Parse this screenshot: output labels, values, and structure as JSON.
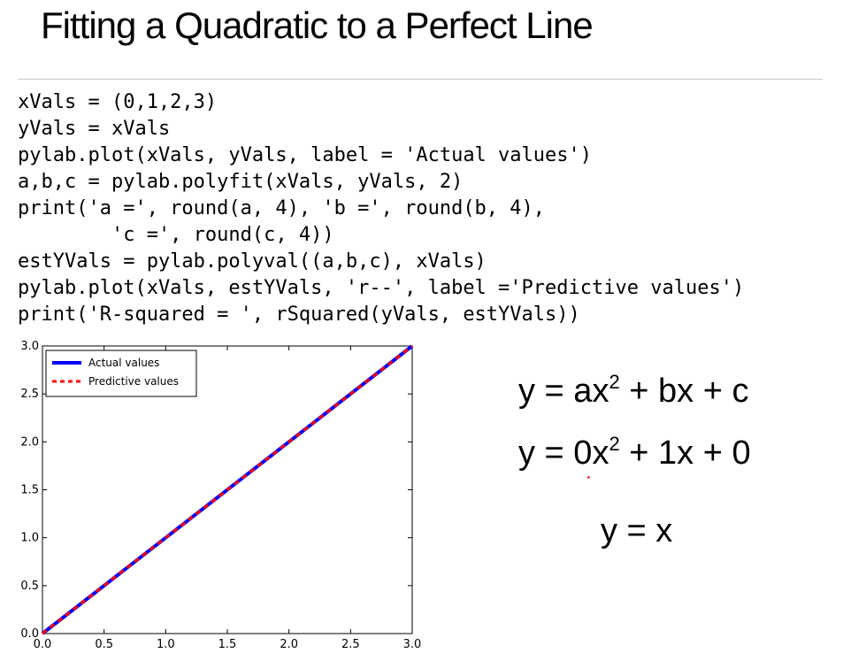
{
  "slide": {
    "title": "Fitting a Quadratic to a Perfect Line"
  },
  "code": {
    "lines": [
      "xVals = (0,1,2,3)",
      "yVals = xVals",
      "pylab.plot(xVals, yVals, label = 'Actual values')",
      "a,b,c = pylab.polyfit(xVals, yVals, 2)",
      "print('a =', round(a, 4), 'b =', round(b, 4),",
      "        'c =', round(c, 4))",
      "estYVals = pylab.polyval((a,b,c), xVals)",
      "pylab.plot(xVals, estYVals, 'r--', label ='Predictive values')",
      "print('R-squared = ', rSquared(yVals, estYVals))"
    ]
  },
  "equations": {
    "general": {
      "lhs": "y = ax",
      "exp": "2",
      "rhs": " + bx + c"
    },
    "fitted": {
      "lhs": "y = 0x",
      "exp": "2",
      "rhs": " + 1x + 0"
    },
    "simplified": "y = x"
  },
  "chart_data": {
    "type": "line",
    "title": "",
    "xlabel": "",
    "ylabel": "",
    "xlim": [
      0.0,
      3.0
    ],
    "ylim": [
      0.0,
      3.0
    ],
    "xticks": [
      "0.0",
      "0.5",
      "1.0",
      "1.5",
      "2.0",
      "2.5",
      "3.0"
    ],
    "yticks": [
      "0.0",
      "0.5",
      "1.0",
      "1.5",
      "2.0",
      "2.5",
      "3.0"
    ],
    "grid": false,
    "legend_position": "top-left",
    "series": [
      {
        "name": "Actual values",
        "x": [
          0,
          1,
          2,
          3
        ],
        "y": [
          0,
          1,
          2,
          3
        ],
        "color": "#0000ff",
        "style": "solid"
      },
      {
        "name": "Predictive values",
        "x": [
          0,
          1,
          2,
          3
        ],
        "y": [
          0,
          1,
          2,
          3
        ],
        "color": "#ff0000",
        "style": "dashed"
      }
    ]
  }
}
